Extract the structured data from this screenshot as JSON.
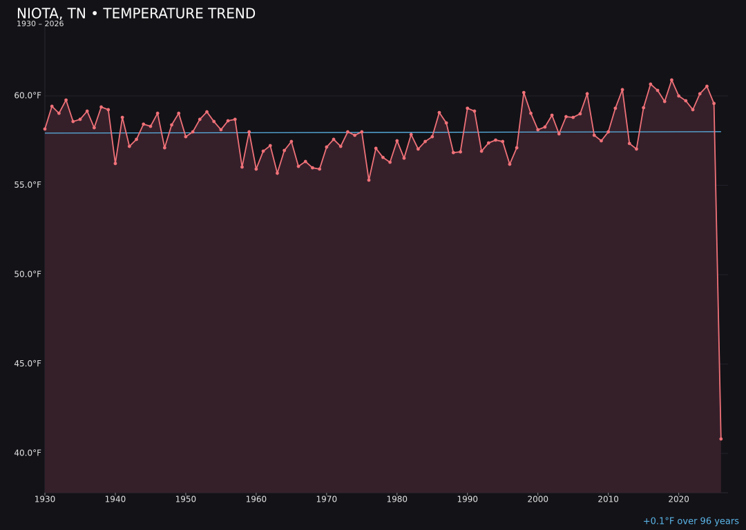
{
  "chart_data": {
    "type": "line",
    "title": "NIOTA, TN • TEMPERATURE TREND",
    "subtitle": "1930 – 2026",
    "annotation": "+0.1°F over 96 years",
    "x": [
      1930,
      1931,
      1932,
      1933,
      1934,
      1935,
      1936,
      1937,
      1938,
      1939,
      1940,
      1941,
      1942,
      1943,
      1944,
      1945,
      1946,
      1947,
      1948,
      1949,
      1950,
      1951,
      1952,
      1953,
      1954,
      1955,
      1956,
      1957,
      1958,
      1959,
      1960,
      1961,
      1962,
      1963,
      1964,
      1965,
      1966,
      1967,
      1968,
      1969,
      1970,
      1971,
      1972,
      1973,
      1974,
      1975,
      1976,
      1977,
      1978,
      1979,
      1980,
      1981,
      1982,
      1983,
      1984,
      1985,
      1986,
      1987,
      1988,
      1989,
      1990,
      1991,
      1992,
      1993,
      1994,
      1995,
      1996,
      1997,
      1998,
      1999,
      2000,
      2001,
      2002,
      2003,
      2004,
      2005,
      2006,
      2007,
      2008,
      2009,
      2010,
      2011,
      2012,
      2013,
      2014,
      2015,
      2016,
      2017,
      2018,
      2019,
      2020,
      2021,
      2022,
      2023,
      2024,
      2025,
      2026
    ],
    "values": [
      58.15,
      59.42,
      59.03,
      59.77,
      58.57,
      58.69,
      59.15,
      58.22,
      59.38,
      59.23,
      56.22,
      58.8,
      57.18,
      57.57,
      58.42,
      58.3,
      59.03,
      57.1,
      58.38,
      59.03,
      57.72,
      57.99,
      58.69,
      59.11,
      58.57,
      58.11,
      58.61,
      58.69,
      56.02,
      57.99,
      55.91,
      56.91,
      57.22,
      55.68,
      56.95,
      57.45,
      56.06,
      56.33,
      55.98,
      55.91,
      57.14,
      57.57,
      57.18,
      57.99,
      57.8,
      57.99,
      55.29,
      57.07,
      56.56,
      56.29,
      57.49,
      56.52,
      57.84,
      57.03,
      57.45,
      57.72,
      59.07,
      58.49,
      56.83,
      56.87,
      59.31,
      59.15,
      56.91,
      57.37,
      57.53,
      57.45,
      56.18,
      57.1,
      60.19,
      59.03,
      58.11,
      58.26,
      58.92,
      57.88,
      58.84,
      58.8,
      59.0,
      60.12,
      57.8,
      57.49,
      57.99,
      59.31,
      60.35,
      57.34,
      57.03,
      59.34,
      60.66,
      60.31,
      59.69,
      60.89,
      60.0,
      59.73,
      59.23,
      60.12,
      60.54,
      59.58,
      40.81
    ],
    "color": "#f07178",
    "fill_color": "#35202a",
    "trend": {
      "x": [
        1930,
        2026
      ],
      "values": [
        57.92,
        58.0
      ],
      "color": "#5ab4e6"
    },
    "xlim": [
      1930,
      2027
    ],
    "xticks": [
      1930,
      1940,
      1950,
      1960,
      1970,
      1980,
      1990,
      2000,
      2010,
      2020
    ],
    "ylim": [
      37.8,
      63.9
    ],
    "yticks": [
      {
        "value": 40,
        "label": "40.0°F"
      },
      {
        "value": 45,
        "label": "45.0°F"
      },
      {
        "value": 50,
        "label": "50.0°F"
      },
      {
        "value": 55,
        "label": "55.0°F"
      },
      {
        "value": 60,
        "label": "60.0°F"
      }
    ],
    "grid": true
  }
}
